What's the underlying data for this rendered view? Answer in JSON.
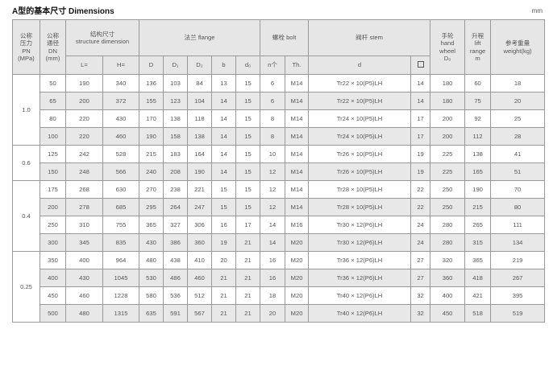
{
  "title": "A型的基本尺寸  Dimensions",
  "unit": "mm",
  "headers": {
    "pn": [
      "公称",
      "压力",
      "PN",
      "(MPa)"
    ],
    "dn": [
      "公称",
      "通径",
      "DN",
      "(mm)"
    ],
    "structure": [
      "结构尺寸",
      "structure dimension"
    ],
    "flange": "法兰 flange",
    "bolt": "螺栓 bolt",
    "stem": "阀杆 stem",
    "handwheel": [
      "手轮",
      "hand",
      "wheel",
      "D₀"
    ],
    "lift": [
      "升程",
      "lift",
      "range",
      "m"
    ],
    "weight": [
      "参考重量",
      "weight(kg)"
    ],
    "sub": [
      "L=",
      "H=",
      "D",
      "D₁",
      "D₂",
      "b",
      "d₀",
      "n个",
      "Th.",
      "d",
      "□"
    ]
  },
  "groups": [
    {
      "pn": "1.0",
      "rows": [
        [
          "50",
          "190",
          "340",
          "136",
          "103",
          "84",
          "13",
          "15",
          "6",
          "M14",
          "Tr22 × 10(P5)LH",
          "14",
          "180",
          "60",
          "18"
        ],
        [
          "65",
          "200",
          "372",
          "155",
          "123",
          "104",
          "14",
          "15",
          "6",
          "M14",
          "Tr22 × 10(P5)LH",
          "14",
          "180",
          "75",
          "20"
        ],
        [
          "80",
          "220",
          "430",
          "170",
          "138",
          "118",
          "14",
          "15",
          "8",
          "M14",
          "Tr24 × 10(P5)LH",
          "17",
          "200",
          "92",
          "25"
        ],
        [
          "100",
          "220",
          "460",
          "190",
          "158",
          "138",
          "14",
          "15",
          "8",
          "M14",
          "Tr24 × 10(P5)LH",
          "17",
          "200",
          "112",
          "28"
        ]
      ]
    },
    {
      "pn": "0.6",
      "rows": [
        [
          "125",
          "242",
          "528",
          "215",
          "183",
          "164",
          "14",
          "15",
          "10",
          "M14",
          "Tr26 × 10(P5)LH",
          "19",
          "225",
          "138",
          "41"
        ],
        [
          "150",
          "248",
          "566",
          "240",
          "208",
          "190",
          "14",
          "15",
          "12",
          "M14",
          "Tr26 × 10(P5)LH",
          "19",
          "225",
          "165",
          "51"
        ]
      ]
    },
    {
      "pn": "0.4",
      "rows": [
        [
          "175",
          "268",
          "630",
          "270",
          "238",
          "221",
          "15",
          "15",
          "12",
          "M14",
          "Tr28 × 10(P5)LH",
          "22",
          "250",
          "190",
          "70"
        ],
        [
          "200",
          "278",
          "685",
          "295",
          "264",
          "247",
          "15",
          "15",
          "12",
          "M14",
          "Tr28 × 10(P5)LH",
          "22",
          "250",
          "215",
          "80"
        ],
        [
          "250",
          "310",
          "755",
          "365",
          "327",
          "306",
          "16",
          "17",
          "14",
          "M16",
          "Tr30 × 12(P6)LH",
          "24",
          "280",
          "265",
          "111"
        ],
        [
          "300",
          "345",
          "835",
          "430",
          "386",
          "360",
          "19",
          "21",
          "14",
          "M20",
          "Tr30 × 12(P6)LH",
          "24",
          "280",
          "315",
          "134"
        ]
      ]
    },
    {
      "pn": "0.25",
      "rows": [
        [
          "350",
          "400",
          "964",
          "480",
          "438",
          "410",
          "20",
          "21",
          "16",
          "M20",
          "Tr36 × 12(P6)LH",
          "27",
          "320",
          "365",
          "219"
        ],
        [
          "400",
          "430",
          "1045",
          "530",
          "486",
          "460",
          "21",
          "21",
          "16",
          "M20",
          "Tr36 × 12(P6)LH",
          "27",
          "360",
          "418",
          "267"
        ],
        [
          "450",
          "460",
          "1228",
          "580",
          "536",
          "512",
          "21",
          "21",
          "18",
          "M20",
          "Tr40 × 12(P6)LH",
          "32",
          "400",
          "421",
          "395"
        ],
        [
          "500",
          "480",
          "1315",
          "635",
          "591",
          "567",
          "21",
          "21",
          "20",
          "M20",
          "Tr40 × 12(P6)LH",
          "32",
          "450",
          "518",
          "519"
        ]
      ]
    }
  ]
}
